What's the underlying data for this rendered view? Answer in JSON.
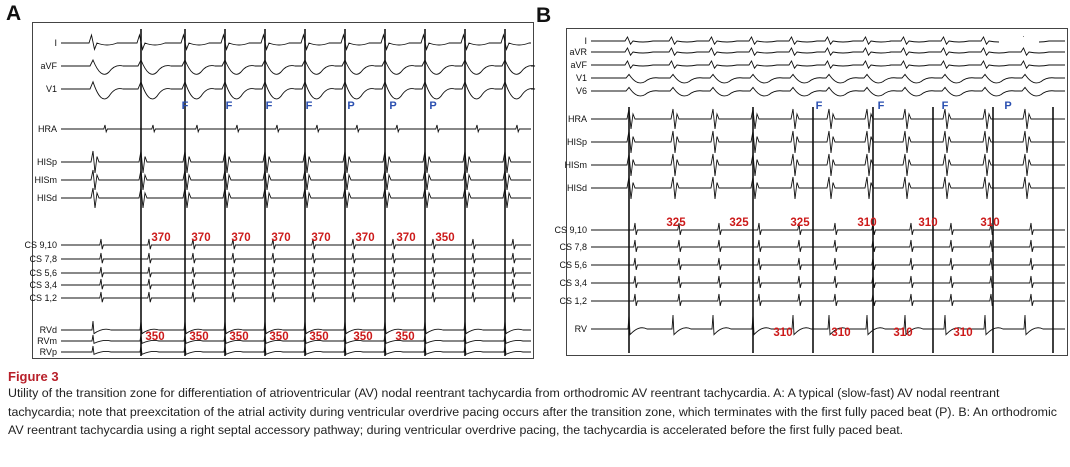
{
  "panels": {
    "a": {
      "letter": "A",
      "leads": [
        "I",
        "aVF",
        "V1",
        "HRA",
        "HISp",
        "HISm",
        "HISd",
        "CS 9,10",
        "CS 7,8",
        "CS 5,6",
        "CS 3,4",
        "CS 1,2",
        "RVd",
        "RVm",
        "RVp"
      ],
      "beat_labels": [
        "F",
        "F",
        "F",
        "F",
        "P",
        "P",
        "P"
      ],
      "atrial_intervals": [
        "370",
        "370",
        "370",
        "370",
        "370",
        "370",
        "370",
        "350"
      ],
      "pacing_intervals": [
        "350",
        "350",
        "350",
        "350",
        "350",
        "350",
        "350"
      ]
    },
    "b": {
      "letter": "B",
      "leads": [
        "I",
        "aVR",
        "aVF",
        "V1",
        "V6",
        "HRA",
        "HISp",
        "HISm",
        "HISd",
        "CS 9,10",
        "CS 7,8",
        "CS 5,6",
        "CS 3,4",
        "CS 1,2",
        "RV"
      ],
      "beat_labels": [
        "F",
        "F",
        "F",
        "P"
      ],
      "atrial_intervals": [
        "325",
        "325",
        "325",
        "310",
        "310",
        "310"
      ],
      "pacing_intervals": [
        "310",
        "310",
        "310",
        "310"
      ]
    }
  },
  "figure": {
    "label": "Figure 3",
    "caption": "Utility of the transition zone for differentiation of atrioventricular (AV) nodal reentrant tachycardia from orthodromic AV reentrant tachycardia. A: A typical (slow-fast) AV nodal reentrant tachycardia; note that preexcitation of the atrial activity during ventricular overdrive pacing occurs after the transition zone, which terminates with the first fully paced beat (P). B: An orthodromic AV reentrant tachycardia using a right septal accessory pathway; during ventricular overdrive pacing, the tachycardia is accelerated before the first fully paced beat."
  }
}
